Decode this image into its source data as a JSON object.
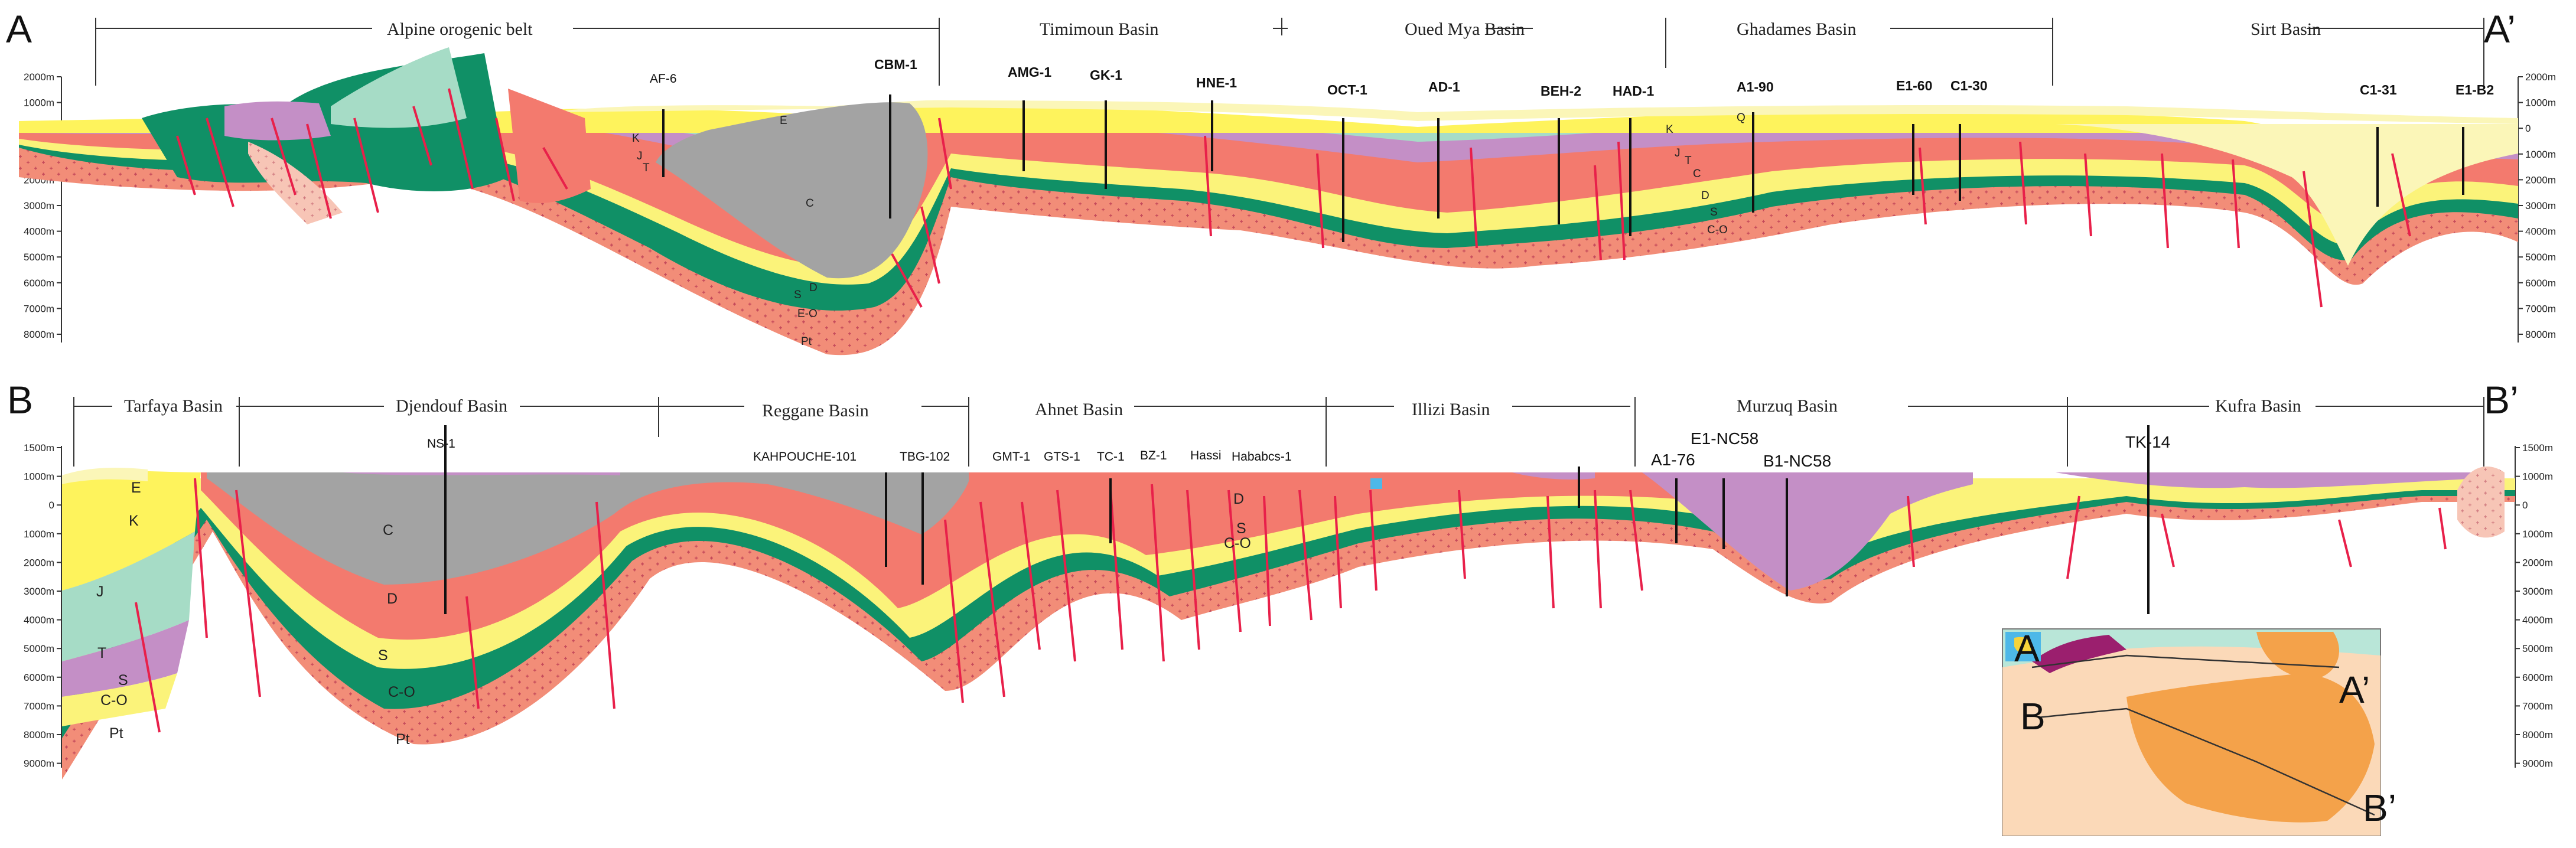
{
  "section_a": {
    "start_label": "A",
    "end_label": "A’",
    "basins": [
      "Alpine orogenic belt",
      "Timimoun Basin",
      "Oued Mya Basin",
      "Ghadames Basin",
      "Sirt Basin"
    ],
    "wells": [
      "AF-6",
      "CBM-1",
      "AMG-1",
      "GK-1",
      "HNE-1",
      "OCT-1",
      "AD-1",
      "BEH-2",
      "HAD-1",
      "A1-90",
      "E1-60",
      "C1-30",
      "C1-31",
      "E1-B2"
    ],
    "depth_ticks": [
      "2000m",
      "1000m",
      "0",
      "1000m",
      "2000m",
      "3000m",
      "4000m",
      "5000m",
      "6000m",
      "7000m",
      "8000m"
    ],
    "depth_ticks_right": [
      "2000m",
      "1000m",
      "0",
      "1000m",
      "2000m",
      "3000m",
      "4000m",
      "5000m",
      "6000m",
      "7000m",
      "8000m"
    ],
    "unit_labels": [
      "K",
      "J",
      "T",
      "E",
      "C",
      "S",
      "D",
      "E-O",
      "Pt",
      "K",
      "J",
      "T",
      "C",
      "Q",
      "D",
      "S",
      "C-O"
    ]
  },
  "section_b": {
    "start_label": "B",
    "end_label": "B’",
    "basins": [
      "Tarfaya Basin",
      "Djendouf Basin",
      "Reggane Basin",
      "Ahnet Basin",
      "Illizi Basin",
      "Murzuq Basin",
      "Kufra Basin"
    ],
    "wells": [
      "NS-1",
      "KAHPOUCHE-101",
      "TBG-102",
      "GMT-1",
      "GTS-1",
      "TC-1",
      "BZ-1",
      "Hassi",
      "Hababcs-1",
      "A1-76",
      "E1-NC58",
      "B1-NC58",
      "TK-14"
    ],
    "depth_ticks": [
      "1500m",
      "1000m",
      "0",
      "1000m",
      "2000m",
      "3000m",
      "4000m",
      "5000m",
      "6000m",
      "7000m",
      "8000m",
      "9000m"
    ],
    "depth_ticks_right": [
      "1500m",
      "1000m",
      "0",
      "1000m",
      "2000m",
      "3000m",
      "4000m",
      "5000m",
      "6000m",
      "7000m",
      "8000m",
      "9000m"
    ],
    "unit_labels": [
      "E",
      "K",
      "J",
      "T",
      "S",
      "C-O",
      "Pt",
      "C",
      "D",
      "S",
      "C-O",
      "Pt",
      "D",
      "S",
      "C-O"
    ]
  },
  "inset_map": {
    "labels": [
      "A",
      "A’",
      "B",
      "B’"
    ],
    "colors": {
      "sea": "#b9e6d8",
      "basin": "#f4a24a",
      "fold_belt": "#9b1f6e",
      "shield": "#fbd9b8"
    }
  },
  "colors": {
    "Q_E": "#fbf6b8",
    "K": "#fef35c",
    "J": "#a6dcc6",
    "T": "#c48fc6",
    "C": "#a3a3a3",
    "D": "#f37a6e",
    "S": "#fbf37a",
    "C_O": "#109066",
    "Pt": "#f0907a",
    "fault": "#e8204a"
  }
}
